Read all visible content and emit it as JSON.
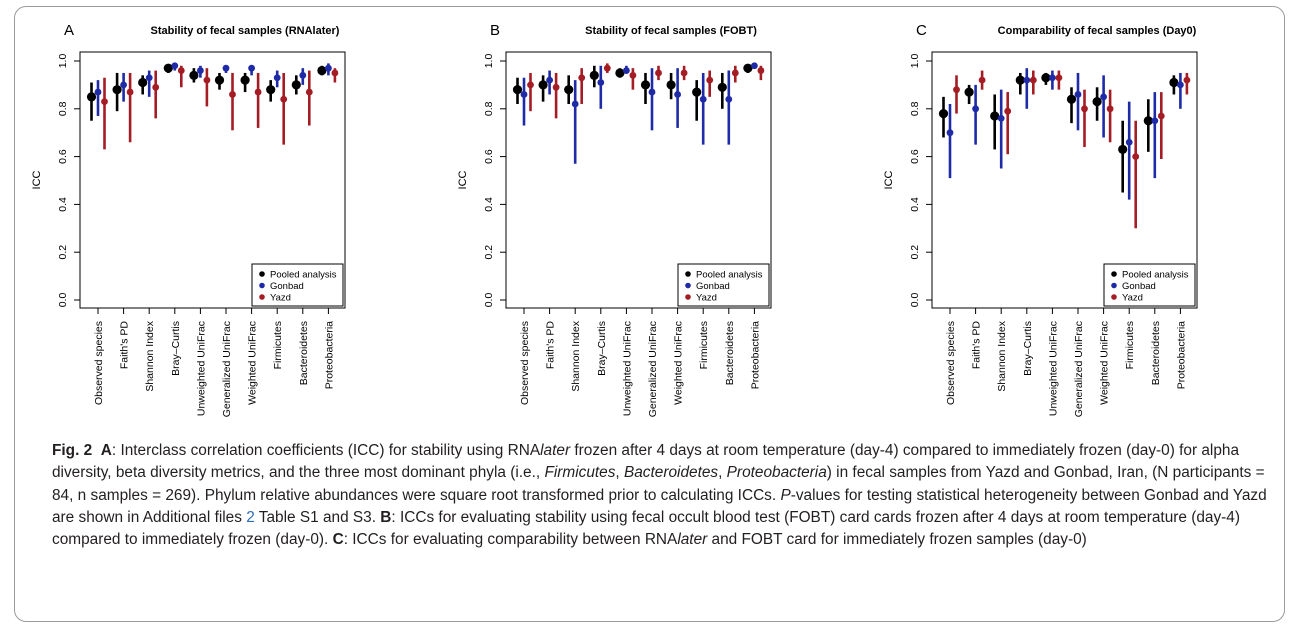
{
  "chart_data": [
    {
      "type": "scatter",
      "panel_letter": "A",
      "title": "Stability of fecal samples (RNAlater)",
      "ylabel": "ICC",
      "xlabel": "",
      "ylim": [
        0,
        1.0
      ],
      "yticks": [
        "0.0",
        "0.2",
        "0.4",
        "0.6",
        "0.8",
        "1.0"
      ],
      "grid": false,
      "legend_position": "bottom-right",
      "categories": [
        "Observed species",
        "Faith's PD",
        "Shannon Index",
        "Bray–Curtis",
        "Unweighted UniFrac",
        "Generalized UniFrac",
        "Weighted UniFrac",
        "Firmicutes",
        "Bacteroidetes",
        "Proteobacteria"
      ],
      "series": [
        {
          "name": "Pooled analysis",
          "color": "#000000",
          "values": [
            0.85,
            0.88,
            0.91,
            0.97,
            0.94,
            0.92,
            0.92,
            0.88,
            0.9,
            0.96
          ],
          "lower": [
            0.75,
            0.79,
            0.86,
            0.95,
            0.91,
            0.88,
            0.87,
            0.83,
            0.86,
            0.94
          ],
          "upper": [
            0.91,
            0.95,
            0.94,
            0.98,
            0.97,
            0.95,
            0.95,
            0.92,
            0.94,
            0.98
          ]
        },
        {
          "name": "Gonbad",
          "color": "#1f2aa6",
          "values": [
            0.87,
            0.9,
            0.93,
            0.98,
            0.96,
            0.97,
            0.97,
            0.93,
            0.94,
            0.97
          ],
          "lower": [
            0.77,
            0.83,
            0.85,
            0.96,
            0.93,
            0.95,
            0.94,
            0.89,
            0.9,
            0.94
          ],
          "upper": [
            0.92,
            0.95,
            0.96,
            0.99,
            0.98,
            0.98,
            0.98,
            0.96,
            0.97,
            0.99
          ]
        },
        {
          "name": "Yazd",
          "color": "#a51d24",
          "values": [
            0.83,
            0.87,
            0.89,
            0.96,
            0.92,
            0.86,
            0.87,
            0.84,
            0.87,
            0.95
          ],
          "lower": [
            0.63,
            0.66,
            0.76,
            0.89,
            0.81,
            0.71,
            0.72,
            0.65,
            0.73,
            0.91
          ],
          "upper": [
            0.93,
            0.95,
            0.96,
            0.98,
            0.97,
            0.95,
            0.95,
            0.95,
            0.96,
            0.97
          ]
        }
      ]
    },
    {
      "type": "scatter",
      "panel_letter": "B",
      "title": "Stability of fecal samples (FOBT)",
      "ylabel": "ICC",
      "xlabel": "",
      "ylim": [
        0,
        1.0
      ],
      "yticks": [
        "0.0",
        "0.2",
        "0.4",
        "0.6",
        "0.8",
        "1.0"
      ],
      "grid": false,
      "legend_position": "bottom-right",
      "categories": [
        "Observed species",
        "Faith's PD",
        "Shannon Index",
        "Bray–Curtis",
        "Unweighted UniFrac",
        "Generalized UniFrac",
        "Weighted UniFrac",
        "Firmicutes",
        "Bacteroidetes",
        "Proteobacteria"
      ],
      "series": [
        {
          "name": "Pooled analysis",
          "color": "#000000",
          "values": [
            0.88,
            0.9,
            0.88,
            0.94,
            0.95,
            0.9,
            0.9,
            0.87,
            0.89,
            0.97
          ],
          "lower": [
            0.82,
            0.83,
            0.82,
            0.89,
            0.93,
            0.82,
            0.84,
            0.75,
            0.8,
            0.95
          ],
          "upper": [
            0.93,
            0.94,
            0.94,
            0.98,
            0.97,
            0.95,
            0.95,
            0.92,
            0.95,
            0.98
          ]
        },
        {
          "name": "Gonbad",
          "color": "#1f2aa6",
          "values": [
            0.86,
            0.92,
            0.82,
            0.91,
            0.96,
            0.87,
            0.86,
            0.84,
            0.84,
            0.98
          ],
          "lower": [
            0.73,
            0.86,
            0.57,
            0.8,
            0.95,
            0.71,
            0.72,
            0.65,
            0.65,
            0.97
          ],
          "upper": [
            0.93,
            0.96,
            0.92,
            0.98,
            0.98,
            0.97,
            0.97,
            0.95,
            0.96,
            0.99
          ]
        },
        {
          "name": "Yazd",
          "color": "#a51d24",
          "values": [
            0.9,
            0.89,
            0.93,
            0.97,
            0.94,
            0.95,
            0.95,
            0.92,
            0.95,
            0.96
          ],
          "lower": [
            0.79,
            0.76,
            0.82,
            0.95,
            0.88,
            0.92,
            0.92,
            0.85,
            0.91,
            0.92
          ],
          "upper": [
            0.95,
            0.95,
            0.97,
            0.99,
            0.97,
            0.98,
            0.98,
            0.96,
            0.98,
            0.98
          ]
        }
      ]
    },
    {
      "type": "scatter",
      "panel_letter": "C",
      "title": "Comparability of fecal samples (Day0)",
      "ylabel": "ICC",
      "xlabel": "",
      "ylim": [
        0,
        1.0
      ],
      "yticks": [
        "0.0",
        "0.2",
        "0.4",
        "0.6",
        "0.8",
        "1.0"
      ],
      "grid": false,
      "legend_position": "bottom-right",
      "categories": [
        "Observed species",
        "Faith's PD",
        "Shannon Index",
        "Bray–Curtis",
        "Unweighted UniFrac",
        "Generalized UniFrac",
        "Weighted UniFrac",
        "Firmicutes",
        "Bacteroidetes",
        "Proteobacteria"
      ],
      "series": [
        {
          "name": "Pooled analysis",
          "color": "#000000",
          "values": [
            0.78,
            0.87,
            0.77,
            0.92,
            0.93,
            0.84,
            0.83,
            0.63,
            0.75,
            0.91
          ],
          "lower": [
            0.68,
            0.82,
            0.63,
            0.86,
            0.9,
            0.74,
            0.75,
            0.45,
            0.62,
            0.86
          ],
          "upper": [
            0.85,
            0.9,
            0.86,
            0.95,
            0.95,
            0.89,
            0.89,
            0.75,
            0.84,
            0.94
          ]
        },
        {
          "name": "Gonbad",
          "color": "#1f2aa6",
          "values": [
            0.7,
            0.8,
            0.76,
            0.92,
            0.93,
            0.86,
            0.85,
            0.66,
            0.75,
            0.9
          ],
          "lower": [
            0.51,
            0.65,
            0.55,
            0.8,
            0.88,
            0.71,
            0.68,
            0.42,
            0.51,
            0.8
          ],
          "upper": [
            0.82,
            0.9,
            0.88,
            0.97,
            0.96,
            0.95,
            0.94,
            0.83,
            0.87,
            0.95
          ]
        },
        {
          "name": "Yazd",
          "color": "#a51d24",
          "values": [
            0.88,
            0.92,
            0.79,
            0.92,
            0.93,
            0.8,
            0.8,
            0.6,
            0.77,
            0.92
          ],
          "lower": [
            0.78,
            0.88,
            0.61,
            0.86,
            0.88,
            0.64,
            0.66,
            0.3,
            0.59,
            0.86
          ],
          "upper": [
            0.94,
            0.96,
            0.87,
            0.96,
            0.96,
            0.88,
            0.88,
            0.75,
            0.87,
            0.95
          ]
        }
      ]
    }
  ],
  "caption": {
    "fig_label": "Fig. 2",
    "A": "A",
    "p1_a": ": Interclass correlation coefficients (ICC) for stability using RNA",
    "p1_later": "later",
    "p1_b": " frozen after 4 days at room temperature (day-4) compared to immediately frozen (day-0) for alpha diversity, beta diversity metrics, and the three most dominant phyla (i.e., ",
    "firmicutes": "Firmicutes",
    "comma1": ", ",
    "bacteroidetes": "Bacteroidetes",
    "comma2": ", ",
    "proteobacteria": "Proteobacteria",
    "p1_c": ") in fecal samples from Yazd and Gonbad, Iran, (N participants = 84, n samples = 269). Phylum relative abundances were square root transformed prior to calculating ICCs. ",
    "p_italic": "P",
    "p1_d": "-values for testing statistical heterogeneity between Gonbad and Yazd are shown in Additional files ",
    "link": "2",
    "p1_e": " Table S1 and S3. ",
    "B": "B",
    "p2": ": ICCs for evaluating stability using fecal occult blood test (FOBT) card cards frozen after 4 days at room temperature (day-4) compared to immediately frozen (day-0). ",
    "C": "C",
    "p3_a": ": ICCs for evaluating comparability between RNA",
    "p3_later": "later",
    "p3_b": " and FOBT card for immediately frozen samples (day-0)"
  }
}
